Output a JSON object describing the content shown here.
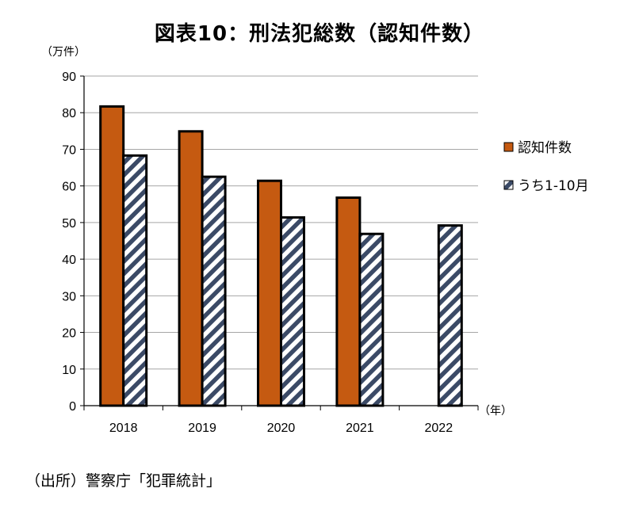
{
  "title": "図表10：刑法犯総数（認知件数）",
  "source": "（出所）警察庁「犯罪統計」",
  "colors": {
    "orange": "#C55A11",
    "stripe_dark": "#3B4A66",
    "stripe_light": "#FFFFFF",
    "grid": "#A6A6A6"
  },
  "chart_data": {
    "type": "bar",
    "categories": [
      "2018",
      "2019",
      "2020",
      "2021",
      "2022"
    ],
    "series": [
      {
        "name": "認知件数",
        "values": [
          81.7,
          74.9,
          61.4,
          56.8,
          null
        ]
      },
      {
        "name": "うち1-10月",
        "values": [
          68.3,
          62.5,
          51.4,
          46.9,
          49.2
        ]
      }
    ],
    "y_ticks": [
      0,
      10,
      20,
      30,
      40,
      50,
      60,
      70,
      80,
      90
    ],
    "ylim": [
      0,
      90
    ],
    "y_unit": "（万件）",
    "x_unit": "（年）",
    "grid": true,
    "legend_position": "right"
  }
}
